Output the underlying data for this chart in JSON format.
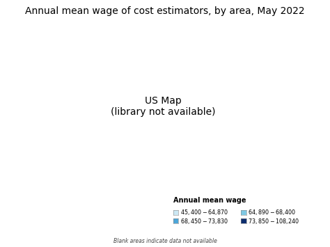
{
  "title": "Annual mean wage of cost estimators, by area, May 2022",
  "legend_title": "Annual mean wage",
  "legend_items": [
    {
      "label": "$45,400 - $64,870",
      "color": "#cce8f4"
    },
    {
      "label": "$68,450 - $73,830",
      "color": "#4da6d9"
    },
    {
      "label": "$64,890 - $68,400",
      "color": "#7ec8e3"
    },
    {
      "label": "$73,850 - $108,240",
      "color": "#0d2e6e"
    }
  ],
  "footnote": "Blank areas indicate data not available",
  "background_color": "#ffffff",
  "title_fontsize": 10,
  "legend_fontsize": 7,
  "map_colors": [
    "#cce8f4",
    "#7ec8e3",
    "#4da6d9",
    "#0d2e6e"
  ],
  "edge_color": "#ffffff",
  "edge_linewidth": 0.3
}
